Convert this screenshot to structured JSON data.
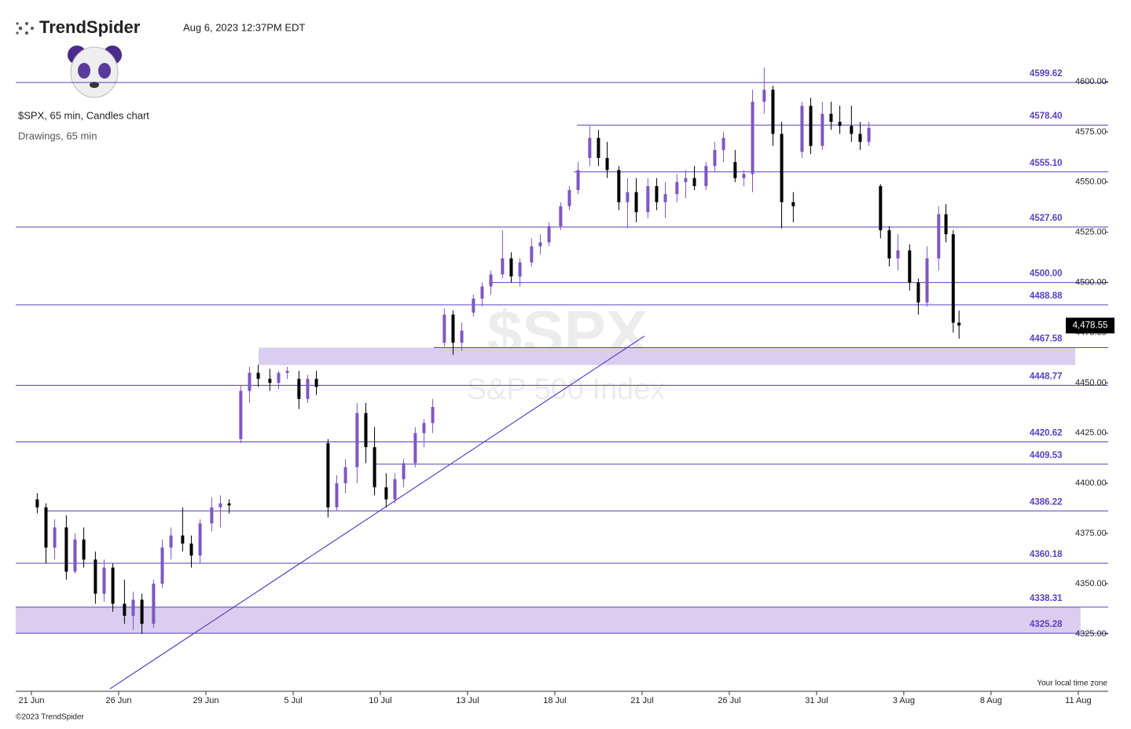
{
  "brand": "TrendSpider",
  "timestamp": "Aug 6, 2023 12:37PM EDT",
  "copyright": "©2023 TrendSpider",
  "chart_data": {
    "type": "candlestick",
    "title": "$SPX, 65 min, Candles chart",
    "subtitle": "Drawings, 65 min",
    "watermark": "$SPX",
    "watermark_subtitle": "S&P 500 Index",
    "timezone_note": "Your local time zone",
    "up_color": "#7e57c2",
    "down_color": "#000000",
    "level_color": "#5b3fc4",
    "zone_color": "#d9cef0",
    "xlim": [
      -0.54,
      37.03
    ],
    "ylim": [
      4296.4,
      4613.3
    ],
    "xticks": [
      {
        "value": 0,
        "label": "21 Jun"
      },
      {
        "value": 3,
        "label": "26 Jun"
      },
      {
        "value": 6,
        "label": "29 Jun"
      },
      {
        "value": 9,
        "label": "5 Jul"
      },
      {
        "value": 12,
        "label": "10 Jul"
      },
      {
        "value": 15,
        "label": "13 Jul"
      },
      {
        "value": 18,
        "label": "18 Jul"
      },
      {
        "value": 21,
        "label": "21 Jul"
      },
      {
        "value": 24,
        "label": "26 Jul"
      },
      {
        "value": 27,
        "label": "31 Jul"
      },
      {
        "value": 30,
        "label": "3 Aug"
      },
      {
        "value": 33,
        "label": "8 Aug"
      },
      {
        "value": 36,
        "label": "11 Aug"
      }
    ],
    "yticks": [
      {
        "value": 4325,
        "label": "4325.00"
      },
      {
        "value": 4350,
        "label": "4350.00"
      },
      {
        "value": 4375,
        "label": "4375.00"
      },
      {
        "value": 4400,
        "label": "4400.00"
      },
      {
        "value": 4425,
        "label": "4425.00"
      },
      {
        "value": 4450,
        "label": "4450.00"
      },
      {
        "value": 4475,
        "label": "4475.00"
      },
      {
        "value": 4500,
        "label": "4500.00"
      },
      {
        "value": 4525,
        "label": "4525.00"
      },
      {
        "value": 4550,
        "label": "4550.00"
      },
      {
        "value": 4575,
        "label": "4575.00"
      },
      {
        "value": 4600,
        "label": "4600.00"
      }
    ],
    "last_price": {
      "value": 4478.55,
      "label": "4,478.55"
    },
    "levels": [
      {
        "value": 4599.62,
        "label": "4599.62"
      },
      {
        "value": 4578.4,
        "label": "4578.40",
        "start": 18.76
      },
      {
        "value": 4555.1,
        "label": "4555.10",
        "start": 18.65
      },
      {
        "value": 4527.6,
        "label": "4527.60"
      },
      {
        "value": 4500,
        "label": "4500.00",
        "start": 15.73
      },
      {
        "value": 4488.88,
        "label": "4488.88"
      },
      {
        "value": 4467.58,
        "label": "4467.58",
        "start": 13.84
      },
      {
        "value": 4448.77,
        "label": "4448.77"
      },
      {
        "value": 4420.62,
        "label": "4420.62"
      },
      {
        "value": 4409.53,
        "label": "4409.53",
        "start": 11.84
      },
      {
        "value": 4386.22,
        "label": "4386.22",
        "start": 0.54
      },
      {
        "value": 4360.18,
        "label": "4360.18"
      },
      {
        "value": 4338.31,
        "label": "4338.31"
      },
      {
        "value": 4325.28,
        "label": "4325.28"
      }
    ],
    "zones": [
      {
        "top": 4467.58,
        "bottom": 4458.9,
        "start": 7.81,
        "end": 35.9
      },
      {
        "top": 4338.31,
        "bottom": 4325.28,
        "start": -0.54,
        "end": 36.08
      }
    ],
    "trendline": {
      "x": [
        2.7,
        21.08
      ],
      "y": [
        4297.6,
        4473.3
      ]
    },
    "x": [
      0.2,
      0.5,
      0.8,
      1.2,
      1.5,
      1.8,
      2.2,
      2.5,
      2.8,
      3.2,
      3.5,
      3.8,
      4.2,
      4.5,
      4.8,
      5.2,
      5.5,
      5.8,
      6.2,
      6.5,
      6.8,
      7.2,
      7.5,
      7.8,
      8.2,
      8.5,
      8.8,
      9.2,
      9.5,
      9.8,
      10.2,
      10.5,
      10.8,
      11.2,
      11.5,
      11.8,
      12.2,
      12.5,
      12.8,
      13.2,
      13.5,
      13.8,
      14.2,
      14.5,
      14.8,
      15.2,
      15.5,
      15.8,
      16.2,
      16.5,
      16.8,
      17.2,
      17.5,
      17.8,
      18.2,
      18.5,
      18.8,
      19.2,
      19.5,
      19.8,
      20.2,
      20.5,
      20.8,
      21.2,
      21.5,
      21.8,
      22.2,
      22.5,
      22.8,
      23.2,
      23.5,
      23.8,
      24.2,
      24.5,
      24.8,
      25.2,
      25.5,
      25.8,
      26.2,
      26.5,
      26.8,
      27.2,
      27.5,
      27.8,
      28.2,
      28.5,
      28.8,
      29.2,
      29.5,
      29.8,
      30.2,
      30.5,
      30.8,
      31.2,
      31.45,
      31.7,
      31.9
    ],
    "ohlc": [
      [
        4392,
        4395,
        4385,
        4388
      ],
      [
        4388,
        4390,
        4360,
        4368
      ],
      [
        4368,
        4382,
        4362,
        4378
      ],
      [
        4378,
        4384,
        4352,
        4356
      ],
      [
        4356,
        4375,
        4355,
        4372
      ],
      [
        4372,
        4378,
        4358,
        4362
      ],
      [
        4362,
        4366,
        4340,
        4345
      ],
      [
        4345,
        4362,
        4341,
        4358
      ],
      [
        4358,
        4360,
        4336,
        4340
      ],
      [
        4340,
        4352,
        4330,
        4334
      ],
      [
        4334,
        4346,
        4327,
        4342
      ],
      [
        4342,
        4345,
        4325,
        4330
      ],
      [
        4330,
        4352,
        4328,
        4350
      ],
      [
        4350,
        4372,
        4348,
        4368
      ],
      [
        4368,
        4378,
        4362,
        4374
      ],
      [
        4374,
        4388,
        4366,
        4370
      ],
      [
        4370,
        4374,
        4358,
        4364
      ],
      [
        4364,
        4382,
        4360,
        4380
      ],
      [
        4380,
        4393,
        4376,
        4388
      ],
      [
        4388,
        4394,
        4378,
        4390
      ],
      [
        4390,
        4392,
        4385,
        4389
      ],
      [
        4422,
        4449,
        4420,
        4446
      ],
      [
        4446,
        4458,
        4440,
        4455
      ],
      [
        4455,
        4459,
        4448,
        4452
      ],
      [
        4452,
        4457,
        4446,
        4450
      ],
      [
        4450,
        4456,
        4447,
        4455
      ],
      [
        4455,
        4458,
        4452,
        4456
      ],
      [
        4452,
        4456,
        4437,
        4442
      ],
      [
        4442,
        4454,
        4440,
        4452
      ],
      [
        4452,
        4456,
        4444,
        4448
      ],
      [
        4420,
        4422,
        4383,
        4388
      ],
      [
        4388,
        4404,
        4386,
        4400
      ],
      [
        4400,
        4412,
        4395,
        4408
      ],
      [
        4408,
        4440,
        4400,
        4435
      ],
      [
        4435,
        4440,
        4410,
        4418
      ],
      [
        4418,
        4428,
        4394,
        4398
      ],
      [
        4398,
        4405,
        4388,
        4392
      ],
      [
        4392,
        4405,
        4390,
        4402
      ],
      [
        4402,
        4412,
        4398,
        4410
      ],
      [
        4410,
        4428,
        4408,
        4425
      ],
      [
        4425,
        4432,
        4418,
        4430
      ],
      [
        4430,
        4442,
        4425,
        4438
      ],
      [
        4470,
        4487,
        4468,
        4484
      ],
      [
        4484,
        4486,
        4464,
        4470
      ],
      [
        4470,
        4480,
        4466,
        4476
      ],
      [
        4485,
        4494,
        4483,
        4492
      ],
      [
        4492,
        4500,
        4488,
        4498
      ],
      [
        4498,
        4506,
        4494,
        4504
      ],
      [
        4504,
        4526,
        4502,
        4512
      ],
      [
        4512,
        4515,
        4500,
        4503
      ],
      [
        4503,
        4512,
        4498,
        4510
      ],
      [
        4510,
        4522,
        4508,
        4518
      ],
      [
        4518,
        4524,
        4514,
        4520
      ],
      [
        4520,
        4530,
        4518,
        4528
      ],
      [
        4528,
        4540,
        4526,
        4538
      ],
      [
        4538,
        4548,
        4536,
        4546
      ],
      [
        4546,
        4560,
        4544,
        4556
      ],
      [
        4562,
        4578,
        4558,
        4572
      ],
      [
        4572,
        4576,
        4558,
        4562
      ],
      [
        4562,
        4570,
        4552,
        4556
      ],
      [
        4556,
        4558,
        4536,
        4540
      ],
      [
        4540,
        4552,
        4527,
        4545
      ],
      [
        4545,
        4552,
        4530,
        4535
      ],
      [
        4535,
        4552,
        4532,
        4548
      ],
      [
        4548,
        4552,
        4536,
        4540
      ],
      [
        4540,
        4550,
        4532,
        4544
      ],
      [
        4544,
        4554,
        4540,
        4550
      ],
      [
        4550,
        4556,
        4542,
        4552
      ],
      [
        4552,
        4558,
        4546,
        4548
      ],
      [
        4548,
        4560,
        4546,
        4558
      ],
      [
        4558,
        4570,
        4555,
        4566
      ],
      [
        4566,
        4575,
        4560,
        4572
      ],
      [
        4560,
        4566,
        4550,
        4552
      ],
      [
        4552,
        4556,
        4548,
        4554
      ],
      [
        4554,
        4596,
        4545,
        4590
      ],
      [
        4590,
        4607,
        4584,
        4596
      ],
      [
        4596,
        4598,
        4568,
        4574
      ],
      [
        4574,
        4580,
        4527,
        4540
      ],
      [
        4540,
        4545,
        4530,
        4538
      ],
      [
        4565,
        4590,
        4562,
        4588
      ],
      [
        4588,
        4592,
        4564,
        4568
      ],
      [
        4568,
        4590,
        4566,
        4584
      ],
      [
        4584,
        4590,
        4576,
        4580
      ],
      [
        4580,
        4588,
        4574,
        4578
      ],
      [
        4578,
        4588,
        4570,
        4574
      ],
      [
        4574,
        4580,
        4566,
        4570
      ],
      [
        4570,
        4580,
        4568,
        4577
      ],
      [
        4548,
        4549,
        4522,
        4526
      ],
      [
        4526,
        4528,
        4508,
        4512
      ],
      [
        4512,
        4524,
        4506,
        4516
      ],
      [
        4516,
        4519,
        4496,
        4500
      ],
      [
        4500,
        4502,
        4484,
        4490
      ],
      [
        4490,
        4518,
        4488,
        4512
      ],
      [
        4512,
        4538,
        4506,
        4534
      ],
      [
        4534,
        4539,
        4520,
        4524
      ],
      [
        4524,
        4526,
        4475,
        4480
      ],
      [
        4480,
        4486,
        4472,
        4478.55
      ]
    ]
  }
}
